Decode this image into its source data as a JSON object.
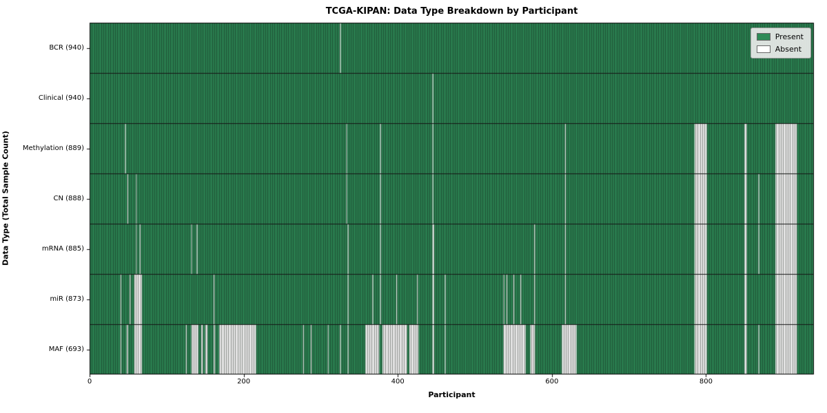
{
  "chart_data": {
    "type": "heatmap",
    "title": "TCGA-KIPAN: Data Type Breakdown by Participant",
    "xlabel": "Participant",
    "ylabel": "Data Type (Total Sample Count)",
    "x_ticks": [
      0,
      200,
      400,
      600,
      800
    ],
    "x_max": 940,
    "legend": [
      {
        "label": "Present",
        "color": "#2e8b57"
      },
      {
        "label": "Absent",
        "color": "#ffffff"
      }
    ],
    "colors": {
      "present": "#2e8b57",
      "absent": "#ffffff",
      "edge": "rgba(20,30,22,0.42)",
      "separator": "#151515",
      "veil": "rgba(0,0,0,0.10)"
    },
    "rows": [
      {
        "label": "BCR (940)",
        "count": 940,
        "absent_ranges": [
          [
            325,
            326
          ]
        ]
      },
      {
        "label": "Clinical (940)",
        "count": 940,
        "absent_ranges": [
          [
            445,
            446
          ]
        ]
      },
      {
        "label": "Methylation (889)",
        "count": 889,
        "absent_ranges": [
          [
            46,
            47
          ],
          [
            333,
            334
          ],
          [
            377,
            378
          ],
          [
            445,
            446
          ],
          [
            617,
            618
          ],
          [
            785,
            801
          ],
          [
            850,
            853
          ],
          [
            890,
            918
          ]
        ]
      },
      {
        "label": "CN (888)",
        "count": 888,
        "absent_ranges": [
          [
            49,
            50
          ],
          [
            60,
            61
          ],
          [
            333,
            334
          ],
          [
            377,
            378
          ],
          [
            445,
            446
          ],
          [
            617,
            618
          ],
          [
            785,
            801
          ],
          [
            850,
            853
          ],
          [
            868,
            869
          ],
          [
            890,
            918
          ]
        ]
      },
      {
        "label": "mRNA (885)",
        "count": 885,
        "absent_ranges": [
          [
            60,
            61
          ],
          [
            65,
            66
          ],
          [
            132,
            133
          ],
          [
            139,
            140
          ],
          [
            335,
            336
          ],
          [
            377,
            378
          ],
          [
            445,
            447
          ],
          [
            577,
            578
          ],
          [
            617,
            618
          ],
          [
            785,
            801
          ],
          [
            850,
            853
          ],
          [
            868,
            869
          ],
          [
            890,
            918
          ]
        ]
      },
      {
        "label": "miR (873)",
        "count": 873,
        "absent_ranges": [
          [
            40,
            41
          ],
          [
            52,
            53
          ],
          [
            58,
            68
          ],
          [
            161,
            162
          ],
          [
            335,
            336
          ],
          [
            367,
            368
          ],
          [
            377,
            378
          ],
          [
            398,
            399
          ],
          [
            425,
            426
          ],
          [
            445,
            447
          ],
          [
            461,
            462
          ],
          [
            537,
            538
          ],
          [
            541,
            542
          ],
          [
            550,
            551
          ],
          [
            559,
            560
          ],
          [
            577,
            578
          ],
          [
            617,
            618
          ],
          [
            785,
            801
          ],
          [
            850,
            853
          ],
          [
            890,
            918
          ]
        ]
      },
      {
        "label": "MAF (693)",
        "count": 693,
        "absent_ranges": [
          [
            40,
            41
          ],
          [
            48,
            50
          ],
          [
            58,
            68
          ],
          [
            125,
            126
          ],
          [
            132,
            141
          ],
          [
            145,
            147
          ],
          [
            150,
            153
          ],
          [
            161,
            163
          ],
          [
            168,
            216
          ],
          [
            277,
            278
          ],
          [
            287,
            288
          ],
          [
            309,
            310
          ],
          [
            325,
            326
          ],
          [
            335,
            336
          ],
          [
            358,
            376
          ],
          [
            380,
            412
          ],
          [
            415,
            427
          ],
          [
            445,
            447
          ],
          [
            461,
            462
          ],
          [
            537,
            566
          ],
          [
            572,
            578
          ],
          [
            613,
            632
          ],
          [
            785,
            801
          ],
          [
            850,
            853
          ],
          [
            868,
            869
          ],
          [
            890,
            918
          ]
        ]
      }
    ]
  }
}
